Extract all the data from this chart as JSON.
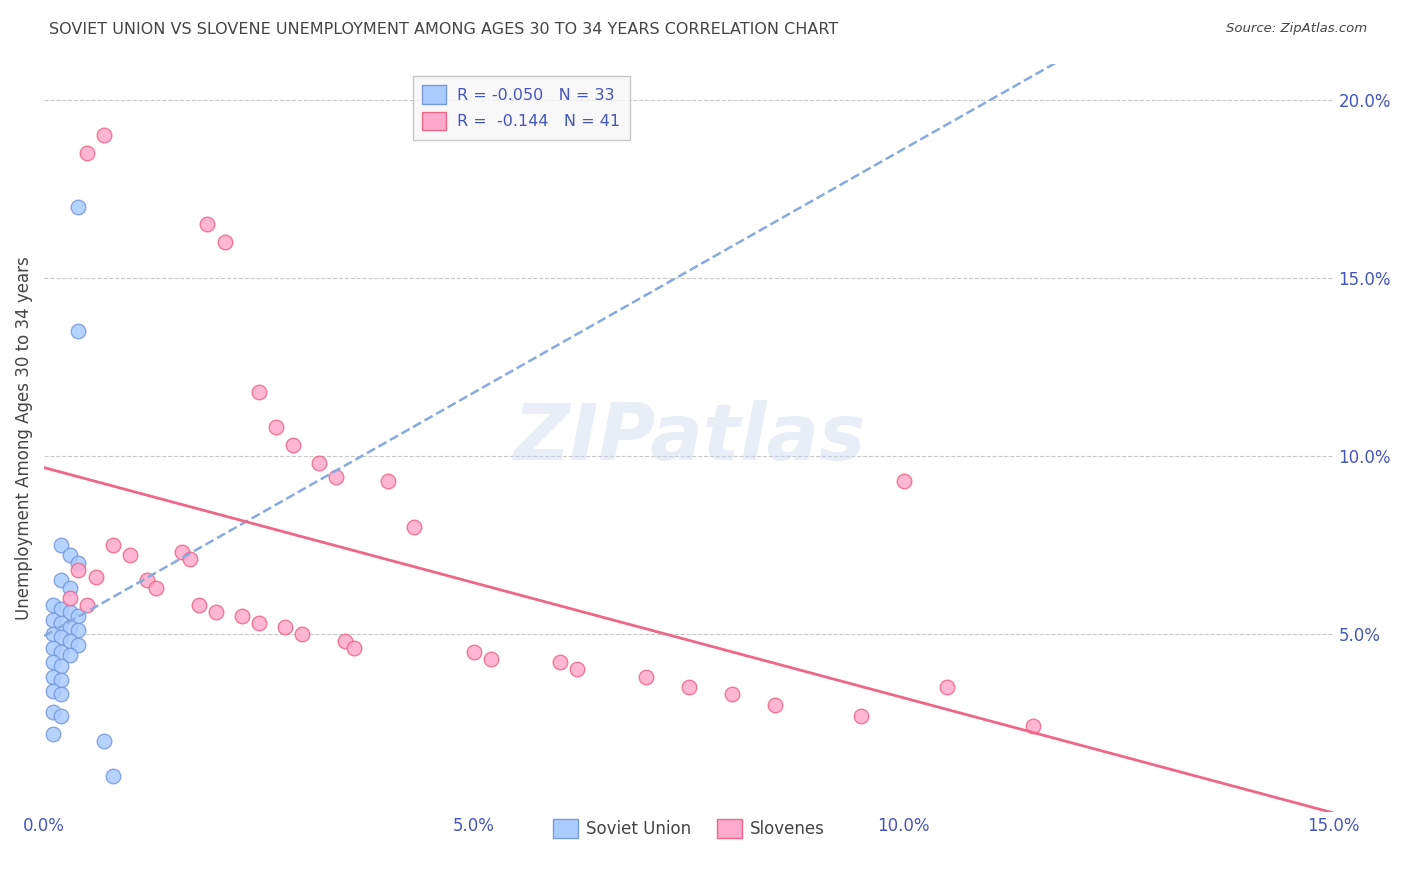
{
  "title": "SOVIET UNION VS SLOVENE UNEMPLOYMENT AMONG AGES 30 TO 34 YEARS CORRELATION CHART",
  "source": "Source: ZipAtlas.com",
  "ylabel": "Unemployment Among Ages 30 to 34 years",
  "xlim": [
    0.0,
    0.15
  ],
  "ylim": [
    0.0,
    0.21
  ],
  "xticks": [
    0.0,
    0.05,
    0.1,
    0.15
  ],
  "xticklabels": [
    "0.0%",
    "5.0%",
    "10.0%",
    "15.0%"
  ],
  "yticks_right": [
    0.05,
    0.1,
    0.15,
    0.2
  ],
  "ytick_right_labels": [
    "5.0%",
    "10.0%",
    "15.0%",
    "20.0%"
  ],
  "background_color": "#ffffff",
  "grid_color": "#c8c8c8",
  "title_color": "#444444",
  "axis_color": "#4455bb",
  "soviet_color": "#aaccff",
  "slovene_color": "#ffaacc",
  "soviet_edge_color": "#7799dd",
  "slovene_edge_color": "#ee6688",
  "soviet_line_color": "#88aadd",
  "slovene_line_color": "#ee6688",
  "soviet_R": "-0.050",
  "soviet_N": "33",
  "slovene_R": "-0.144",
  "slovene_N": "41",
  "soviet_points": [
    [
      0.004,
      0.17
    ],
    [
      0.004,
      0.135
    ],
    [
      0.002,
      0.075
    ],
    [
      0.003,
      0.072
    ],
    [
      0.004,
      0.07
    ],
    [
      0.002,
      0.065
    ],
    [
      0.003,
      0.063
    ],
    [
      0.001,
      0.058
    ],
    [
      0.002,
      0.057
    ],
    [
      0.003,
      0.056
    ],
    [
      0.004,
      0.055
    ],
    [
      0.001,
      0.054
    ],
    [
      0.002,
      0.053
    ],
    [
      0.003,
      0.052
    ],
    [
      0.004,
      0.051
    ],
    [
      0.001,
      0.05
    ],
    [
      0.002,
      0.049
    ],
    [
      0.003,
      0.048
    ],
    [
      0.004,
      0.047
    ],
    [
      0.001,
      0.046
    ],
    [
      0.002,
      0.045
    ],
    [
      0.003,
      0.044
    ],
    [
      0.001,
      0.042
    ],
    [
      0.002,
      0.041
    ],
    [
      0.001,
      0.038
    ],
    [
      0.002,
      0.037
    ],
    [
      0.001,
      0.034
    ],
    [
      0.002,
      0.033
    ],
    [
      0.001,
      0.028
    ],
    [
      0.002,
      0.027
    ],
    [
      0.001,
      0.022
    ],
    [
      0.007,
      0.02
    ],
    [
      0.008,
      0.01
    ]
  ],
  "slovene_points": [
    [
      0.005,
      0.185
    ],
    [
      0.007,
      0.19
    ],
    [
      0.019,
      0.165
    ],
    [
      0.021,
      0.16
    ],
    [
      0.025,
      0.118
    ],
    [
      0.027,
      0.108
    ],
    [
      0.029,
      0.103
    ],
    [
      0.032,
      0.098
    ],
    [
      0.034,
      0.094
    ],
    [
      0.04,
      0.093
    ],
    [
      0.043,
      0.08
    ],
    [
      0.008,
      0.075
    ],
    [
      0.01,
      0.072
    ],
    [
      0.016,
      0.073
    ],
    [
      0.017,
      0.071
    ],
    [
      0.004,
      0.068
    ],
    [
      0.006,
      0.066
    ],
    [
      0.012,
      0.065
    ],
    [
      0.013,
      0.063
    ],
    [
      0.003,
      0.06
    ],
    [
      0.005,
      0.058
    ],
    [
      0.018,
      0.058
    ],
    [
      0.02,
      0.056
    ],
    [
      0.023,
      0.055
    ],
    [
      0.025,
      0.053
    ],
    [
      0.028,
      0.052
    ],
    [
      0.03,
      0.05
    ],
    [
      0.035,
      0.048
    ],
    [
      0.036,
      0.046
    ],
    [
      0.05,
      0.045
    ],
    [
      0.052,
      0.043
    ],
    [
      0.06,
      0.042
    ],
    [
      0.062,
      0.04
    ],
    [
      0.07,
      0.038
    ],
    [
      0.075,
      0.035
    ],
    [
      0.08,
      0.033
    ],
    [
      0.085,
      0.03
    ],
    [
      0.095,
      0.027
    ],
    [
      0.1,
      0.093
    ],
    [
      0.105,
      0.035
    ],
    [
      0.115,
      0.024
    ]
  ]
}
